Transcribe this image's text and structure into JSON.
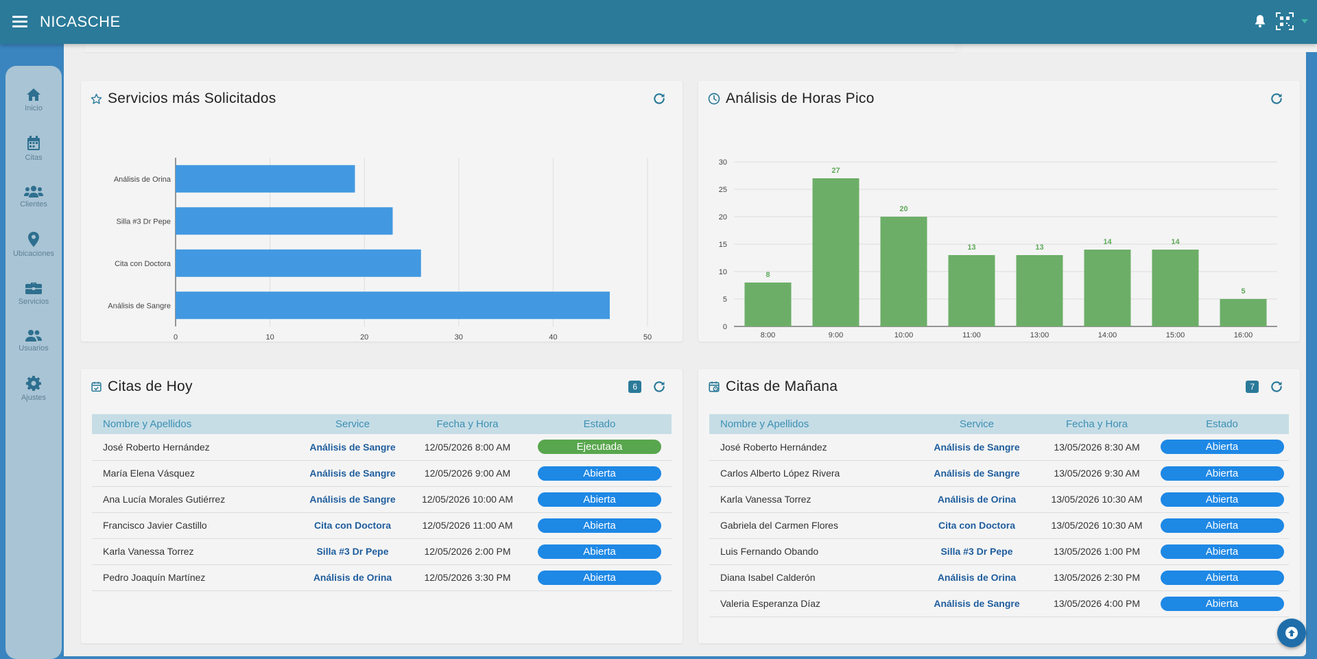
{
  "app": {
    "title": "NICASCHE"
  },
  "sidebar": {
    "items": [
      {
        "label": "Inicio",
        "icon": "home-icon"
      },
      {
        "label": "Citas",
        "icon": "calendar-icon"
      },
      {
        "label": "Clientes",
        "icon": "users-icon"
      },
      {
        "label": "Ubicaciones",
        "icon": "location-icon"
      },
      {
        "label": "Servicios",
        "icon": "briefcase-icon"
      },
      {
        "label": "Usuarios",
        "icon": "user-group-icon"
      },
      {
        "label": "Ajustes",
        "icon": "gear-icon"
      }
    ]
  },
  "services_card": {
    "title": "Servicios más Solicitados"
  },
  "peak_card": {
    "title": "Análisis de Horas Pico"
  },
  "chart_data": [
    {
      "type": "bar",
      "orientation": "horizontal",
      "categories": [
        "Análisis de Orina",
        "Silla #3 Dr Pepe",
        "Cita con Doctora",
        "Análisis de Sangre"
      ],
      "values": [
        19,
        23,
        26,
        46
      ],
      "xlim": [
        0,
        50
      ],
      "ticks": [
        0,
        10,
        20,
        30,
        40,
        50
      ],
      "grid": "vertical",
      "color": "#4299e1"
    },
    {
      "type": "bar",
      "orientation": "vertical",
      "categories": [
        "8:00",
        "9:00",
        "10:00",
        "11:00",
        "13:00",
        "14:00",
        "15:00",
        "16:00"
      ],
      "values": [
        8,
        27,
        20,
        13,
        13,
        14,
        14,
        5
      ],
      "ylim": [
        0,
        30
      ],
      "ticks": [
        0,
        5,
        10,
        15,
        20,
        25,
        30
      ],
      "grid": "horizontal",
      "data_labels": true,
      "color": "#6cae67"
    }
  ],
  "today": {
    "title": "Citas de Hoy",
    "count": "6",
    "headers": [
      "Nombre y Apellidos",
      "Service",
      "Fecha y Hora",
      "Estado"
    ],
    "rows": [
      {
        "name": "José Roberto Hernández",
        "service": "Análisis de Sangre",
        "datetime": "12/05/2026 8:00 AM",
        "status": "Ejecutada"
      },
      {
        "name": "María Elena Vásquez",
        "service": "Análisis de Sangre",
        "datetime": "12/05/2026 9:00 AM",
        "status": "Abierta"
      },
      {
        "name": "Ana Lucía Morales Gutiérrez",
        "service": "Análisis de Sangre",
        "datetime": "12/05/2026 10:00 AM",
        "status": "Abierta"
      },
      {
        "name": "Francisco Javier Castillo",
        "service": "Cita con Doctora",
        "datetime": "12/05/2026 11:00 AM",
        "status": "Abierta"
      },
      {
        "name": "Karla Vanessa Torrez",
        "service": "Silla #3 Dr Pepe",
        "datetime": "12/05/2026 2:00 PM",
        "status": "Abierta"
      },
      {
        "name": "Pedro Joaquín Martínez",
        "service": "Análisis de Orina",
        "datetime": "12/05/2026 3:30 PM",
        "status": "Abierta"
      }
    ]
  },
  "tomorrow": {
    "title": "Citas de Mañana",
    "count": "7",
    "headers": [
      "Nombre y Apellidos",
      "Service",
      "Fecha y Hora",
      "Estado"
    ],
    "rows": [
      {
        "name": "José Roberto Hernández",
        "service": "Análisis de Sangre",
        "datetime": "13/05/2026 8:30 AM",
        "status": "Abierta"
      },
      {
        "name": "Carlos Alberto López Rivera",
        "service": "Análisis de Sangre",
        "datetime": "13/05/2026 9:30 AM",
        "status": "Abierta"
      },
      {
        "name": "Karla Vanessa Torrez",
        "service": "Análisis de Orina",
        "datetime": "13/05/2026 10:30 AM",
        "status": "Abierta"
      },
      {
        "name": "Gabriela del Carmen Flores",
        "service": "Cita con Doctora",
        "datetime": "13/05/2026 10:30 AM",
        "status": "Abierta"
      },
      {
        "name": "Luis Fernando Obando",
        "service": "Silla #3 Dr Pepe",
        "datetime": "13/05/2026 1:00 PM",
        "status": "Abierta"
      },
      {
        "name": "Diana Isabel Calderón",
        "service": "Análisis de Orina",
        "datetime": "13/05/2026 2:30 PM",
        "status": "Abierta"
      },
      {
        "name": "Valeria Esperanza Díaz",
        "service": "Análisis de Sangre",
        "datetime": "13/05/2026 4:00 PM",
        "status": "Abierta"
      }
    ]
  },
  "colors": {
    "topbar": "#2b7a99",
    "open": "#1e88e5",
    "done": "#58a64d"
  }
}
